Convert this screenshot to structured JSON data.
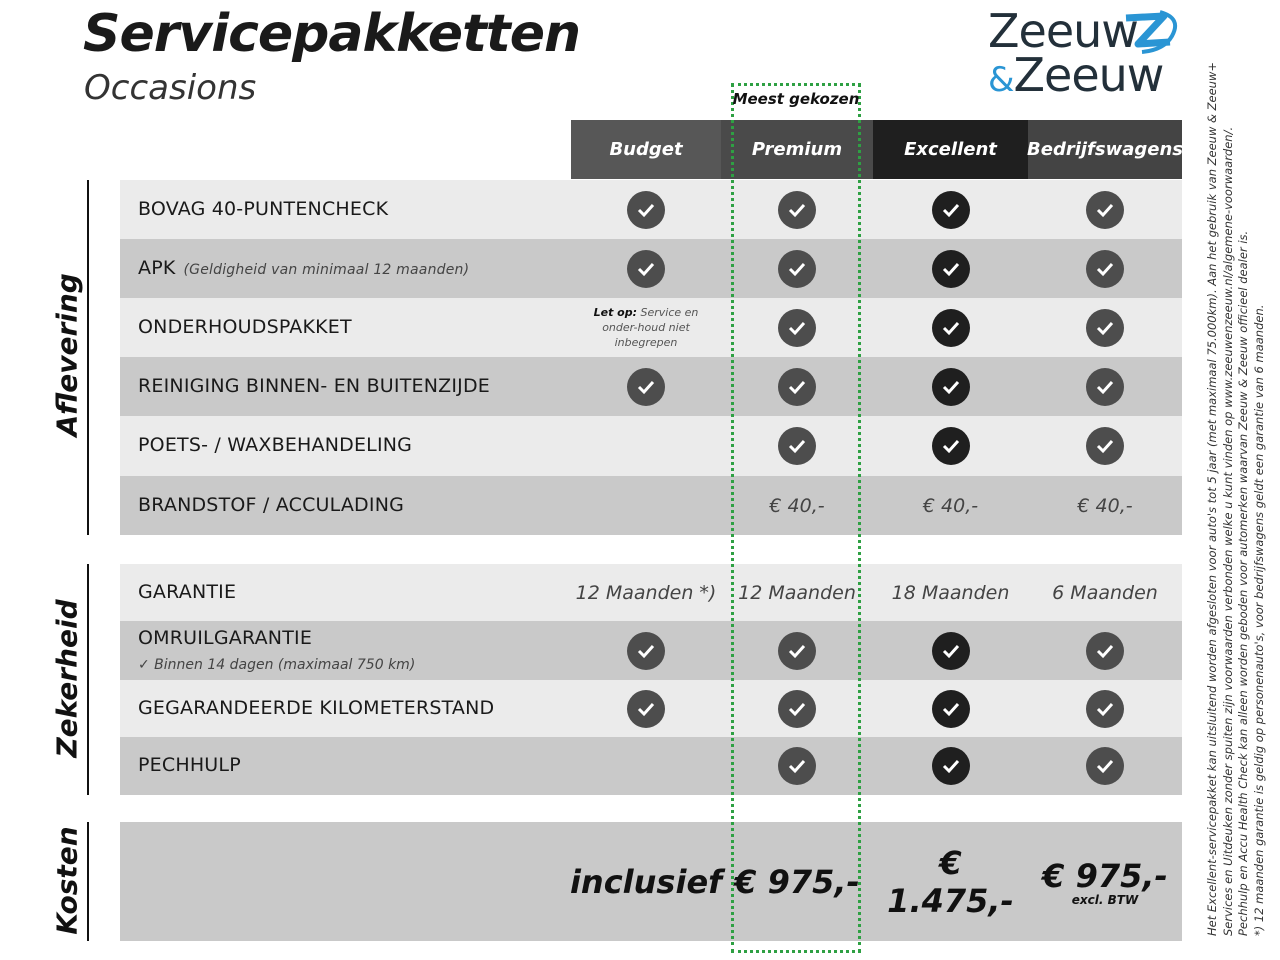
{
  "header": {
    "title": "Servicepakketten",
    "subtitle": "Occasions",
    "logo_text": [
      "Zeeuw",
      "&",
      "Zeeuw"
    ],
    "highlight_label": "Meest gekozen"
  },
  "colors": {
    "highlight": "#2ea043",
    "logo_blue": "#2a95d4",
    "logo_dark": "#23303a",
    "check_gray": "#4d4d4d",
    "check_dark": "#1f1f1f",
    "row_light": "#ebebeb",
    "row_dark": "#c9c9c9"
  },
  "columns": [
    {
      "label": "Budget",
      "bg": "#575757"
    },
    {
      "label": "Premium",
      "bg": "#4a4a4a"
    },
    {
      "label": "Excellent",
      "bg": "#1f1f1f"
    },
    {
      "label": "Bedrijfswagens",
      "bg": "#444444"
    }
  ],
  "sections": [
    {
      "label": "Aflevering",
      "rows": [
        {
          "label": "BOVAG 40-PUNTENCHECK",
          "cells": [
            "check",
            "check",
            "check",
            "check"
          ]
        },
        {
          "label": "APK",
          "note": "(Geldigheid van minimaal 12 maanden)",
          "cells": [
            "check",
            "check",
            "check",
            "check"
          ]
        },
        {
          "label": "ONDERHOUDSPAKKET",
          "cells": [
            {
              "note_bold": "Let op:",
              "note": "Service en onder-houd niet inbegrepen"
            },
            "check",
            "check",
            "check"
          ]
        },
        {
          "label": "REINIGING BINNEN- EN BUITENZIJDE",
          "cells": [
            "check",
            "check",
            "check",
            "check"
          ]
        },
        {
          "label": "POETS- / WAXBEHANDELING",
          "cells": [
            "",
            "check",
            "check",
            "check"
          ]
        },
        {
          "label": "BRANDSTOF / ACCULADING",
          "cells": [
            "",
            "€ 40,-",
            "€ 40,-",
            "€ 40,-"
          ]
        }
      ]
    },
    {
      "label": "Zekerheid",
      "rows": [
        {
          "label": "GARANTIE",
          "cells": [
            "12 Maanden *)",
            "12 Maanden",
            "18 Maanden",
            "6 Maanden"
          ]
        },
        {
          "label": "OMRUILGARANTIE",
          "sub": "✓   Binnen 14 dagen (maximaal 750 km)",
          "cells": [
            "check",
            "check",
            "check",
            "check"
          ]
        },
        {
          "label": "GEGARANDEERDE KILOMETERSTAND",
          "cells": [
            "check",
            "check",
            "check",
            "check"
          ]
        },
        {
          "label": "PECHHULP",
          "cells": [
            "",
            "check",
            "check",
            "check"
          ]
        }
      ]
    },
    {
      "label": "Kosten",
      "rows": [
        {
          "label": "",
          "cells": [
            {
              "price": "inclusief"
            },
            {
              "price": "€ 975,-"
            },
            {
              "price": "€ 1.475,-"
            },
            {
              "price": "€ 975,-",
              "sub": "excl. BTW"
            }
          ]
        }
      ]
    }
  ],
  "footnotes": [
    "Het Excellent-servicepakket kan uitsluitend worden afgesloten voor auto's tot 5 jaar (met maximaal 75.000km). Aan het gebruik van Zeeuw & Zeeuw+",
    "Services en Uitdeuken zonder spuiten zijn voorwaarden verbonden welke u kunt vinden op www.zeeuwenzeeuw.nl/algemene-voorwaarden/.",
    "Pechhulp en Accu Health Check kan alleen worden geboden voor automerken waarvan Zeeuw & Zeeuw officieel dealer is.",
    "*) 12 maanden garantie is geldig op personenauto's, voor bedrijfswagens geldt een garantie van 6 maanden."
  ]
}
